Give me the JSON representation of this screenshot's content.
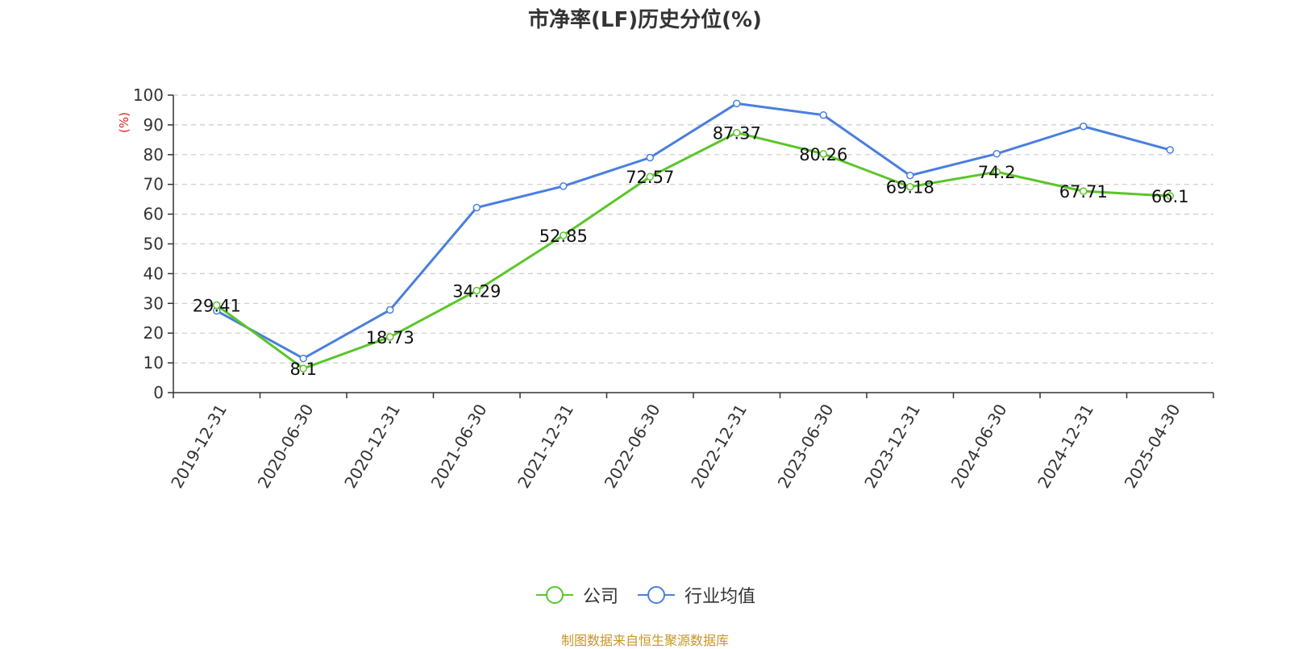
{
  "chart_data": {
    "type": "line",
    "title": "市净率(LF)历史分位(%)",
    "ylabel": "(%)",
    "ylim": [
      0,
      100
    ],
    "yticks": [
      0,
      10,
      20,
      30,
      40,
      50,
      60,
      70,
      80,
      90,
      100
    ],
    "grid": true,
    "legend_position": "bottom-center",
    "categories": [
      "2019-12-31",
      "2020-06-30",
      "2020-12-31",
      "2021-06-30",
      "2021-12-31",
      "2022-06-30",
      "2022-12-31",
      "2023-06-30",
      "2023-12-31",
      "2024-06-30",
      "2024-12-31",
      "2025-04-30"
    ],
    "series": [
      {
        "name": "公司",
        "color": "#5ac62a",
        "values": [
          29.41,
          8.1,
          18.73,
          34.29,
          52.85,
          72.57,
          87.37,
          80.26,
          69.18,
          74.2,
          67.71,
          66.1
        ],
        "labels": [
          "29.41",
          "8.1",
          "18.73",
          "34.29",
          "52.85",
          "72.57",
          "87.37",
          "80.26",
          "69.18",
          "74.2",
          "67.71",
          "66.1"
        ]
      },
      {
        "name": "行业均值",
        "color": "#4a7fdc",
        "values": [
          27.5,
          11.5,
          27.8,
          62.2,
          69.4,
          79.0,
          97.2,
          93.3,
          73.0,
          80.3,
          89.5,
          81.6
        ]
      }
    ]
  },
  "source_note": "制图数据来自恒生聚源数据库"
}
